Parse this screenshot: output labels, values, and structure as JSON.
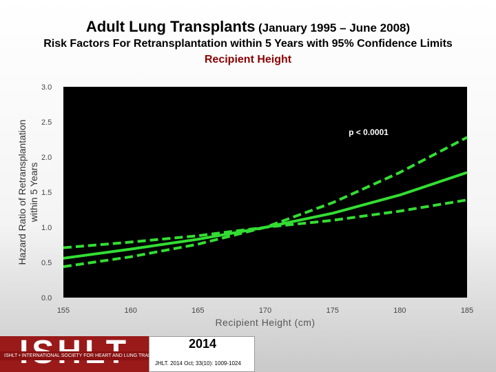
{
  "header": {
    "title_main": "Adult Lung Transplants",
    "title_period": "(January 1995 – June 2008)",
    "subtitle": "Risk Factors For Retransplantation within 5 Years with 95% Confidence Limits",
    "variable": "Recipient Height"
  },
  "chart_data": {
    "type": "line",
    "title": "",
    "xlabel": "Recipient Height (cm)",
    "ylabel": "Hazard Ratio of Retransplantation within 5 Years",
    "xlim": [
      155,
      185
    ],
    "ylim": [
      0,
      3
    ],
    "x_ticks": [
      "155",
      "160",
      "165",
      "170",
      "175",
      "180",
      "185"
    ],
    "y_ticks": [
      "0.0",
      "0.5",
      "1.0",
      "1.5",
      "2.0",
      "2.5",
      "3.0"
    ],
    "annotation": "p < 0.0001",
    "grid": false,
    "plot_background": "#000000",
    "series": [
      {
        "style": "solid",
        "color": "#33dd33",
        "x": [
          155,
          160,
          165,
          170,
          175,
          180,
          185
        ],
        "y": [
          0.56,
          0.69,
          0.83,
          1.0,
          1.2,
          1.46,
          1.78
        ]
      },
      {
        "style": "dashed",
        "color": "#33dd33",
        "x": [
          155,
          160,
          165,
          170,
          175,
          180,
          185
        ],
        "y": [
          0.44,
          0.58,
          0.76,
          1.0,
          1.35,
          1.78,
          2.28
        ]
      },
      {
        "style": "dashed",
        "color": "#33dd33",
        "x": [
          155,
          160,
          165,
          170,
          175,
          180,
          185
        ],
        "y": [
          0.71,
          0.79,
          0.88,
          1.0,
          1.1,
          1.23,
          1.39
        ]
      }
    ]
  },
  "footer": {
    "logo": "ISHLT",
    "tagline": "ISHLT • INTERNATIONAL SOCIETY FOR HEART AND LUNG TRANSPLANTATION",
    "year": "2014",
    "citation": "JHLT. 2014 Oct; 33(10): 1009-1024"
  }
}
